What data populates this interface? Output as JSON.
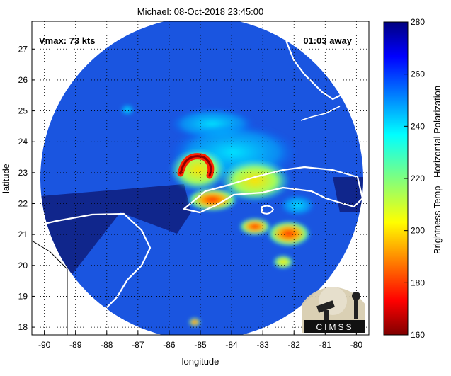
{
  "chart_data": {
    "type": "heatmap",
    "title": "Michael: 08-Oct-2018 23:45:00",
    "xlabel": "longitude",
    "ylabel": "latitude",
    "xlim": [
      -90.4,
      -79.6
    ],
    "ylim": [
      17.75,
      27.9
    ],
    "xticks": [
      -90,
      -89,
      -88,
      -87,
      -86,
      -85,
      -84,
      -83,
      -82,
      -81,
      -80
    ],
    "yticks": [
      18,
      19,
      20,
      21,
      22,
      23,
      24,
      25,
      26,
      27
    ],
    "grid": true,
    "annotations": [
      {
        "text": "Vmax: 73 kts",
        "position": "top-left"
      },
      {
        "text": "01:03 away",
        "position": "top-right"
      }
    ],
    "colorbar": {
      "label": "Brightness Temp - Horizontal Polarization",
      "min": 160,
      "max": 280,
      "ticks": [
        160,
        180,
        200,
        220,
        240,
        260,
        280
      ],
      "colormap": "jet"
    },
    "swath": {
      "center_lon": -85.0,
      "center_lat": 22.8,
      "radius_deg": 5.0,
      "background_value": 255
    },
    "features": [
      {
        "name": "eyewall-arc",
        "lon": -85.5,
        "lat": 23.1,
        "value": 175
      },
      {
        "name": "band-cuba-west",
        "lon": -84.6,
        "lat": 22.0,
        "value": 180
      },
      {
        "name": "band-southeast",
        "lon": -82.1,
        "lat": 21.0,
        "value": 178
      },
      {
        "name": "band-south",
        "lon": -83.4,
        "lat": 21.1,
        "value": 195
      },
      {
        "name": "cold-spot-south",
        "lon": -85.3,
        "lat": 18.0,
        "value": 180
      }
    ]
  },
  "logo": {
    "text": "CIMSS"
  }
}
